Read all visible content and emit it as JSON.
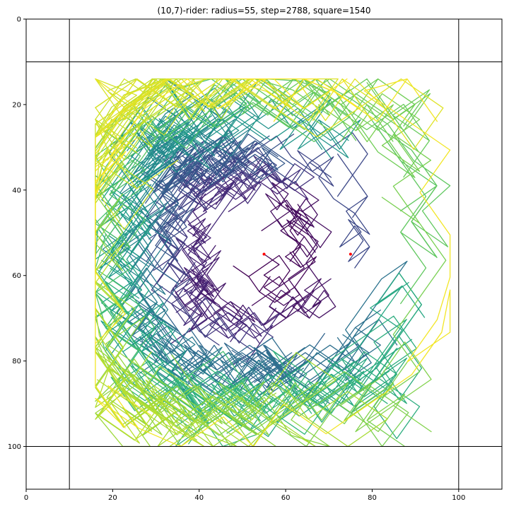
{
  "chart_data": {
    "type": "line",
    "title": "(10,7)-rider: radius=55, step=2788, square=1540",
    "xlabel": "",
    "ylabel": "",
    "xlim": [
      0,
      110
    ],
    "ylim": [
      110,
      0
    ],
    "y_inverted": true,
    "x_ticks": [
      0,
      20,
      40,
      60,
      80,
      100
    ],
    "y_ticks": [
      0,
      20,
      40,
      60,
      80,
      100
    ],
    "grid": false,
    "colormap": "viridis",
    "reference_lines": {
      "vertical": [
        10,
        100
      ],
      "horizontal": [
        10,
        100
      ],
      "color": "#000000"
    },
    "red_points": [
      {
        "x": 55,
        "y": 55
      },
      {
        "x": 75,
        "y": 55
      }
    ],
    "path_start": [
      55,
      55
    ],
    "rider_moves": [
      [
        10,
        7
      ],
      [
        7,
        10
      ]
    ],
    "step_count": 2788,
    "center": [
      55,
      55
    ],
    "path_extent": {
      "x": [
        16,
        98
      ],
      "y": [
        14,
        100
      ]
    }
  }
}
